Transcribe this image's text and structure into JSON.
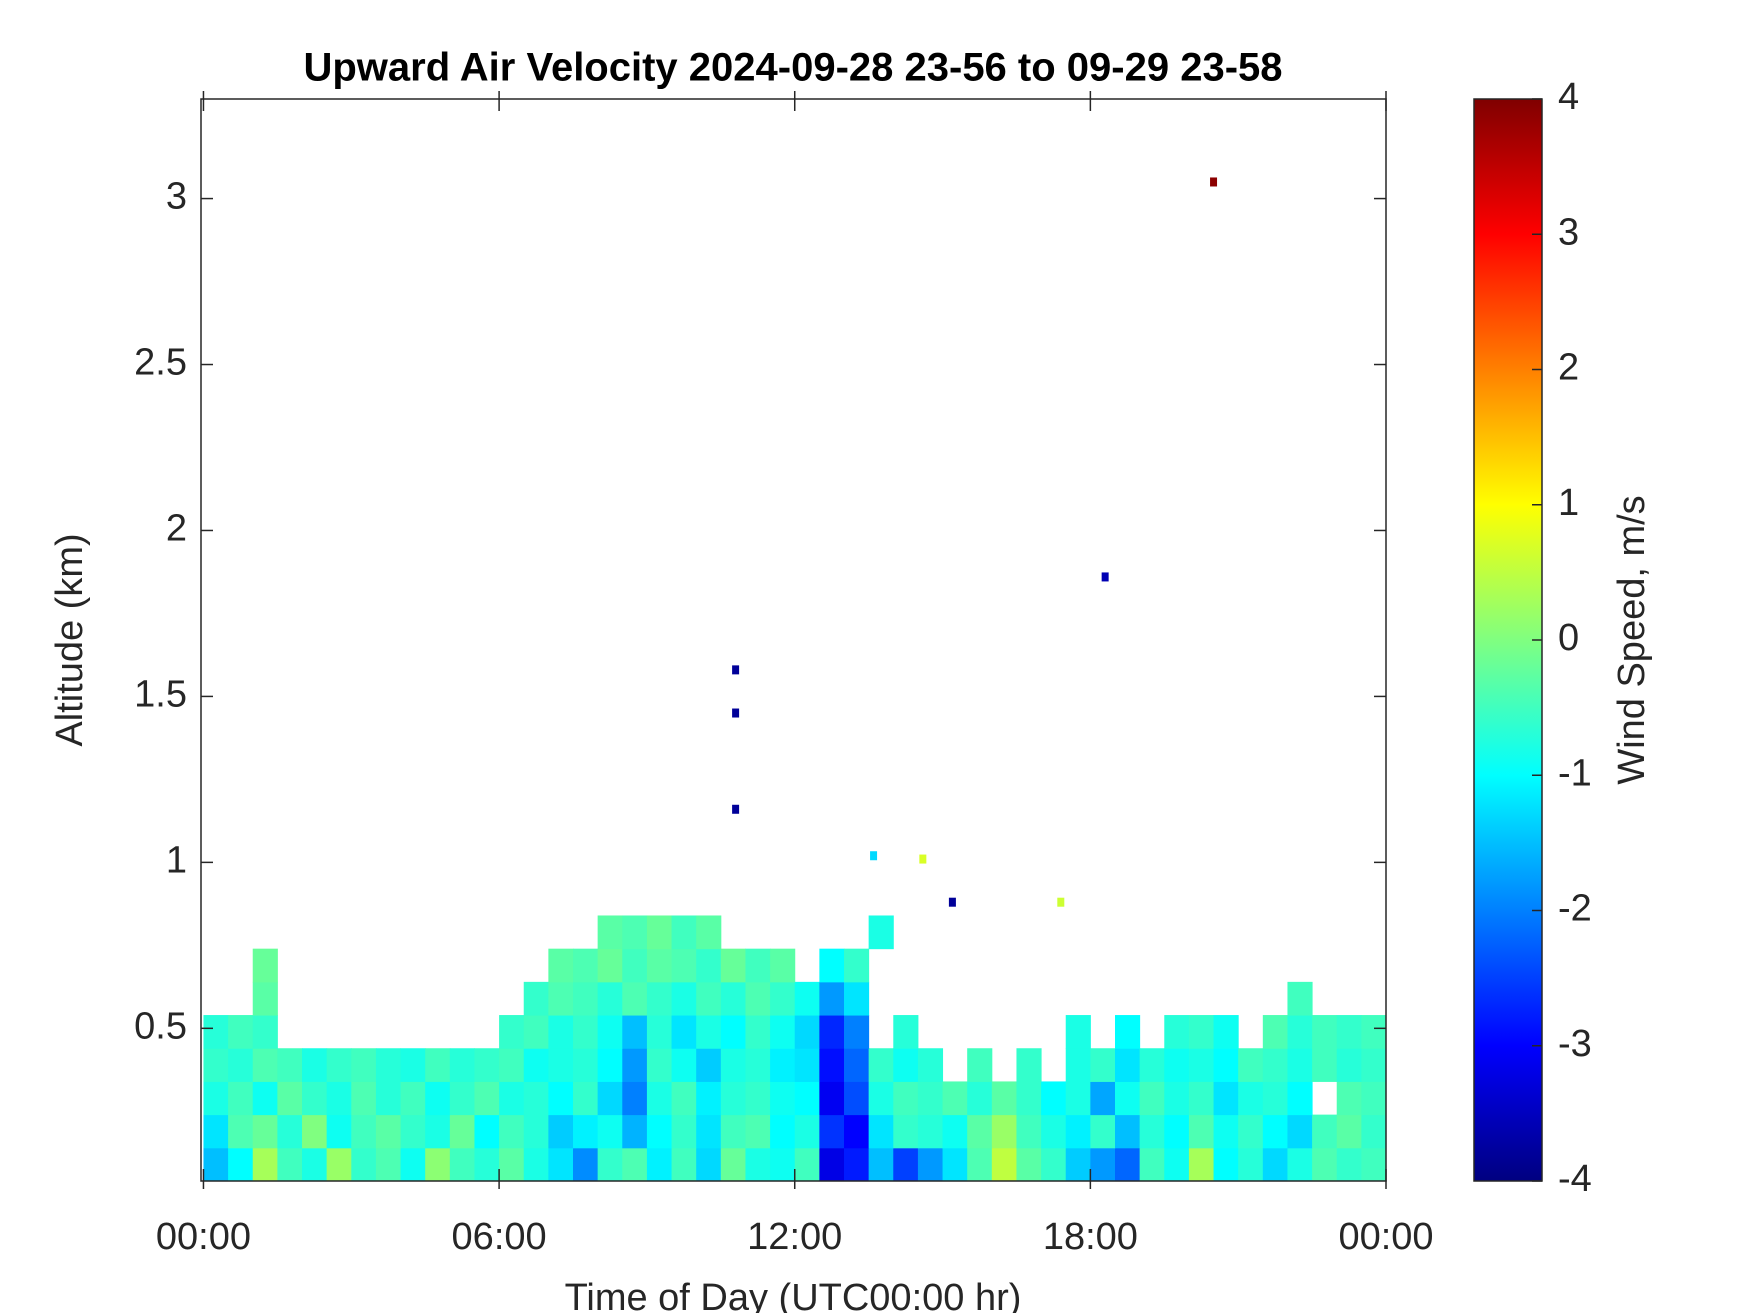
{
  "chart_data": {
    "type": "heatmap",
    "title": "Upward Air Velocity 2024-09-28 23-56 to 09-29 23-58",
    "x_label": "Time of Day (UTC00:00 hr)",
    "y_label": "Altitude (km)",
    "colorbar_label": "Wind Speed, m/s",
    "colormap": "jet",
    "xlim": [
      -0.05,
      24
    ],
    "ylim": [
      0.04,
      3.3
    ],
    "clim": [
      -4,
      4
    ],
    "xticks": [
      {
        "value": 0,
        "label": "00:00"
      },
      {
        "value": 6,
        "label": "06:00"
      },
      {
        "value": 12,
        "label": "12:00"
      },
      {
        "value": 18,
        "label": "18:00"
      },
      {
        "value": 24,
        "label": "00:00"
      }
    ],
    "yticks": [
      0.5,
      1,
      1.5,
      2,
      2.5,
      3
    ],
    "cticks": [
      -4,
      -3,
      -2,
      -1,
      0,
      1,
      2,
      3,
      4
    ],
    "x": [
      0.25,
      0.75,
      1.25,
      1.75,
      2.25,
      2.75,
      3.25,
      3.75,
      4.25,
      4.75,
      5.25,
      5.75,
      6.25,
      6.75,
      7.25,
      7.75,
      8.25,
      8.75,
      9.25,
      9.75,
      10.25,
      10.75,
      11.25,
      11.75,
      12.25,
      12.75,
      13.25,
      13.75,
      14.25,
      14.75,
      15.25,
      15.75,
      16.25,
      16.75,
      17.25,
      17.75,
      18.25,
      18.75,
      19.25,
      19.75,
      20.25,
      20.75,
      21.25,
      21.75,
      22.25,
      22.75,
      23.25,
      23.75
    ],
    "y": [
      0.09,
      0.19,
      0.29,
      0.39,
      0.49,
      0.59,
      0.69,
      0.79
    ],
    "z": [
      [
        -1.5,
        -1.0,
        0.3,
        -0.5,
        -0.8,
        0.2,
        -0.6,
        -0.4,
        -0.9,
        0.1,
        -0.5,
        -0.7,
        -0.3,
        -0.8,
        -1.2,
        -1.9,
        -0.6,
        -0.4,
        -1.1,
        -0.5,
        -1.3,
        -0.2,
        -0.8,
        -0.9,
        -0.5,
        -3.2,
        -2.8,
        -1.5,
        -2.5,
        -1.8,
        -1.2,
        -0.4,
        0.5,
        -0.3,
        -0.6,
        -1.4,
        -1.8,
        -2.2,
        -0.5,
        -0.9,
        0.3,
        -1.0,
        -0.7,
        -1.3,
        -0.8,
        -0.4,
        -0.6,
        -0.5
      ],
      [
        -1.2,
        -0.4,
        -0.2,
        -0.7,
        0.0,
        -0.9,
        -0.5,
        -0.3,
        -0.6,
        -0.8,
        -0.2,
        -1.0,
        -0.5,
        -0.7,
        -1.4,
        -1.1,
        -0.9,
        -1.6,
        -1.0,
        -0.6,
        -1.2,
        -0.5,
        -0.4,
        -1.0,
        -0.8,
        -2.6,
        -3.0,
        -1.2,
        -0.6,
        -0.7,
        -0.9,
        -0.3,
        0.2,
        -0.5,
        -0.8,
        -1.1,
        -0.6,
        -1.5,
        -0.7,
        -1.0,
        -0.4,
        -0.9,
        -0.6,
        -1.0,
        -1.3,
        -0.5,
        -0.3,
        -0.6
      ],
      [
        -0.8,
        -0.5,
        -0.9,
        -0.3,
        -0.6,
        -0.8,
        -0.4,
        -0.7,
        -0.5,
        -0.9,
        -0.6,
        -0.4,
        -0.8,
        -0.7,
        -1.0,
        -0.6,
        -1.3,
        -2.0,
        -0.8,
        -0.5,
        -1.1,
        -0.7,
        -0.6,
        -0.9,
        -1.0,
        -3.1,
        -2.4,
        -0.8,
        -0.5,
        -0.6,
        -0.4,
        -0.7,
        -0.3,
        -0.6,
        -1.0,
        -0.8,
        -1.7,
        -0.9,
        -0.5,
        -0.8,
        -0.6,
        -1.2,
        -0.8,
        -0.7,
        -1.0,
        null,
        -0.4,
        -0.5
      ],
      [
        -0.6,
        -0.7,
        -0.4,
        -0.5,
        -0.8,
        -0.6,
        -0.5,
        -0.7,
        -0.8,
        -0.5,
        -0.7,
        -0.6,
        -0.5,
        -0.9,
        -0.8,
        -0.7,
        -1.0,
        -1.8,
        -0.6,
        -0.9,
        -1.4,
        -0.8,
        -0.7,
        -1.1,
        -1.2,
        -2.9,
        -2.2,
        -0.6,
        -0.9,
        -0.7,
        null,
        -0.5,
        null,
        -0.6,
        null,
        -0.8,
        -0.6,
        -1.2,
        -0.7,
        -0.9,
        -0.8,
        -1.0,
        -0.5,
        -0.6,
        -0.8,
        -0.5,
        -0.7,
        -0.6
      ],
      [
        -0.7,
        -0.5,
        -0.6,
        null,
        null,
        null,
        null,
        null,
        null,
        null,
        null,
        null,
        -0.6,
        -0.5,
        -0.8,
        -0.6,
        -0.9,
        -1.5,
        -0.7,
        -1.2,
        -0.8,
        -1.0,
        -0.6,
        -0.9,
        -1.3,
        -2.7,
        -2.0,
        null,
        -0.7,
        null,
        null,
        null,
        null,
        null,
        null,
        -0.8,
        null,
        -1.0,
        null,
        -0.7,
        -0.6,
        -0.9,
        null,
        -0.4,
        -0.7,
        -0.5,
        -0.6,
        -0.5
      ],
      [
        null,
        null,
        -0.3,
        null,
        null,
        null,
        null,
        null,
        null,
        null,
        null,
        null,
        null,
        -0.6,
        -0.4,
        -0.5,
        -0.7,
        -0.4,
        -0.6,
        -0.8,
        -0.5,
        -0.7,
        -0.4,
        -0.6,
        -0.9,
        -1.8,
        -1.2,
        null,
        null,
        null,
        null,
        null,
        null,
        null,
        null,
        null,
        null,
        null,
        null,
        null,
        null,
        null,
        null,
        null,
        -0.5,
        null,
        null,
        null
      ],
      [
        null,
        null,
        -0.2,
        null,
        null,
        null,
        null,
        null,
        null,
        null,
        null,
        null,
        null,
        null,
        -0.3,
        -0.4,
        -0.2,
        -0.5,
        -0.3,
        -0.4,
        -0.6,
        -0.2,
        -0.5,
        -0.3,
        null,
        -1.0,
        -0.6,
        null,
        null,
        null,
        null,
        null,
        null,
        null,
        null,
        null,
        null,
        null,
        null,
        null,
        null,
        null,
        null,
        null,
        null,
        null,
        null,
        null
      ],
      [
        null,
        null,
        null,
        null,
        null,
        null,
        null,
        null,
        null,
        null,
        null,
        null,
        null,
        null,
        null,
        null,
        -0.3,
        -0.4,
        -0.2,
        -0.5,
        -0.3,
        null,
        null,
        null,
        null,
        null,
        null,
        -0.8,
        null,
        null,
        null,
        null,
        null,
        null,
        null,
        null,
        null,
        null,
        null,
        null,
        null,
        null,
        null,
        null,
        null,
        null,
        null,
        null
      ]
    ],
    "points": {
      "x": [
        10.8,
        10.8,
        10.8,
        18.3,
        20.5,
        13.6,
        14.6,
        15.2,
        17.4
      ],
      "y": [
        1.58,
        1.45,
        1.16,
        1.86,
        3.05,
        1.02,
        1.01,
        0.88,
        0.88
      ],
      "values": [
        -3.8,
        -3.8,
        -3.8,
        -3.6,
        3.9,
        -1.3,
        0.7,
        -3.8,
        0.6
      ]
    }
  }
}
